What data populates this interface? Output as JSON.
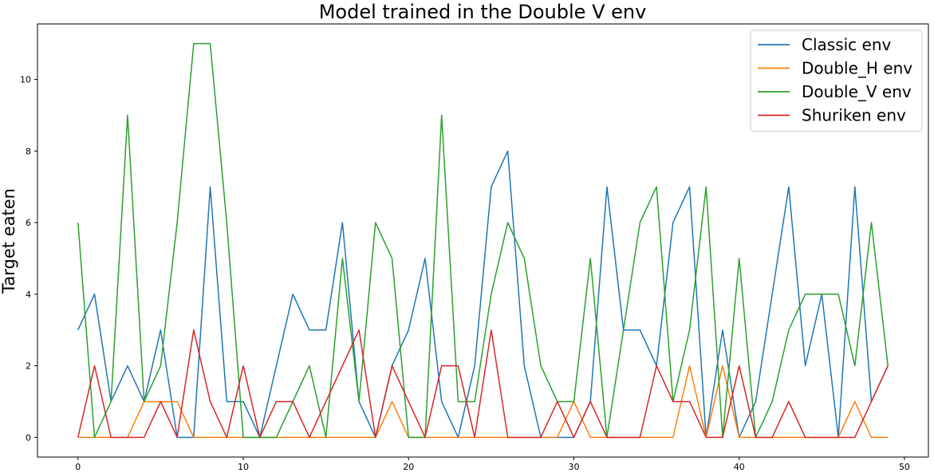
{
  "chart_data": {
    "type": "line",
    "title": "Model trained in the Double V env",
    "xlabel": "",
    "ylabel": "Target eaten",
    "xlim": [
      -2.45,
      51.45
    ],
    "ylim": [
      -0.55,
      11.55
    ],
    "xticks": [
      0,
      10,
      20,
      30,
      40,
      50
    ],
    "yticks": [
      0,
      2,
      4,
      6,
      8,
      10
    ],
    "grid": false,
    "legend_position": "top-right",
    "x": [
      0,
      1,
      2,
      3,
      4,
      5,
      6,
      7,
      8,
      9,
      10,
      11,
      12,
      13,
      14,
      15,
      16,
      17,
      18,
      19,
      20,
      21,
      22,
      23,
      24,
      25,
      26,
      27,
      28,
      29,
      30,
      31,
      32,
      33,
      34,
      35,
      36,
      37,
      38,
      39,
      40,
      41,
      42,
      43,
      44,
      45,
      46,
      47,
      48,
      49
    ],
    "series": [
      {
        "name": "Classic env",
        "color": "#1f77b4",
        "values": [
          3,
          4,
          1,
          2,
          1,
          3,
          0,
          0,
          7,
          1,
          1,
          0,
          2,
          4,
          3,
          3,
          6,
          1,
          0,
          2,
          3,
          5,
          1,
          0,
          2,
          7,
          8,
          2,
          0,
          0,
          0,
          1,
          7,
          3,
          3,
          2,
          6,
          7,
          0,
          3,
          0,
          1,
          4,
          7,
          2,
          4,
          0,
          7,
          1,
          2
        ]
      },
      {
        "name": "Double_H env",
        "color": "#ff7f0e",
        "values": [
          0,
          0,
          0,
          0,
          1,
          1,
          1,
          0,
          0,
          0,
          0,
          0,
          0,
          0,
          0,
          0,
          0,
          0,
          0,
          1,
          0,
          0,
          0,
          0,
          0,
          0,
          0,
          0,
          0,
          0,
          1,
          0,
          0,
          0,
          0,
          0,
          0,
          2,
          0,
          2,
          0,
          0,
          0,
          0,
          0,
          0,
          0,
          1,
          0,
          0
        ]
      },
      {
        "name": "Double_V env",
        "color": "#2ca02c",
        "values": [
          6,
          0,
          1,
          9,
          1,
          2,
          6,
          11,
          11,
          6,
          0,
          0,
          0,
          1,
          2,
          0,
          5,
          1,
          6,
          5,
          0,
          0,
          9,
          1,
          1,
          4,
          6,
          5,
          2,
          1,
          1,
          5,
          0,
          3,
          6,
          7,
          1,
          3,
          7,
          0,
          5,
          0,
          1,
          3,
          4,
          4,
          4,
          2,
          6,
          2
        ]
      },
      {
        "name": "Shuriken env",
        "color": "#d62728",
        "values": [
          0,
          2,
          0,
          0,
          0,
          1,
          0,
          3,
          1,
          0,
          2,
          0,
          1,
          1,
          0,
          1,
          2,
          3,
          0,
          2,
          1,
          0,
          2,
          2,
          0,
          3,
          0,
          0,
          0,
          1,
          0,
          1,
          0,
          0,
          0,
          2,
          1,
          1,
          0,
          0,
          2,
          0,
          0,
          1,
          0,
          0,
          0,
          0,
          1,
          2
        ]
      }
    ]
  }
}
